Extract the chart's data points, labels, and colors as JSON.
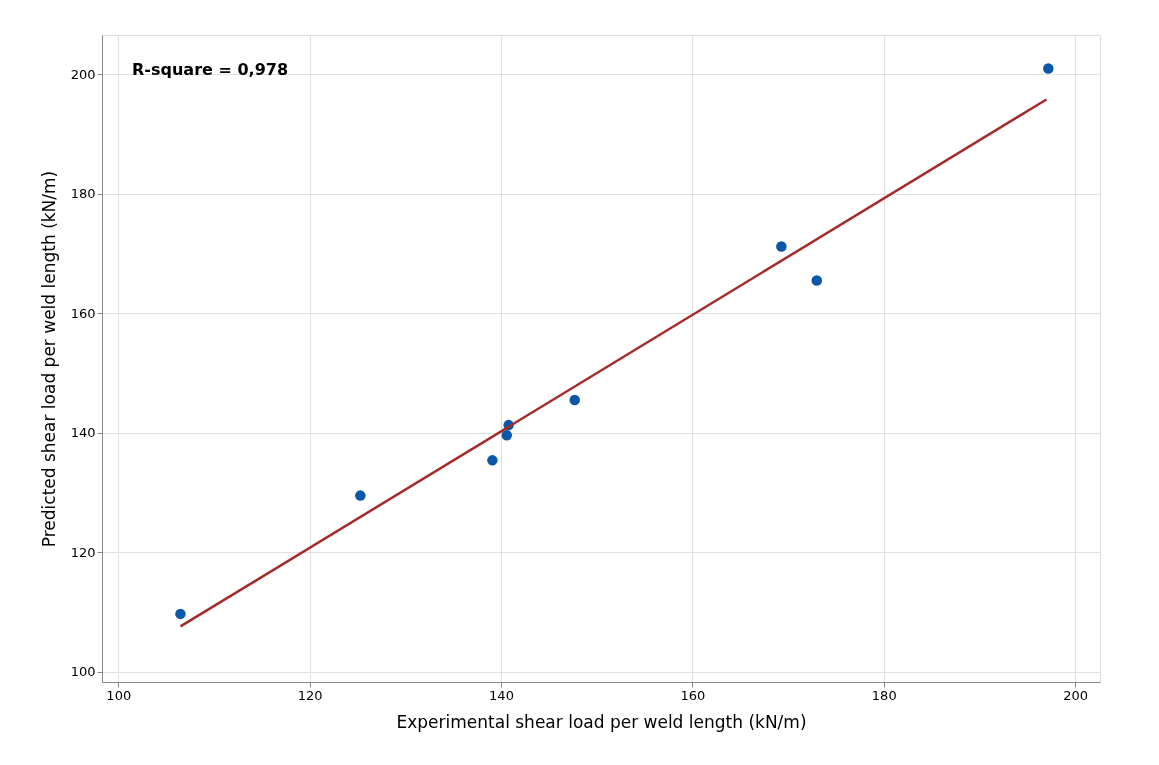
{
  "chart_data": {
    "type": "scatter",
    "xlabel": "Experimental shear load per weld length (kN/m)",
    "ylabel": "Predicted shear load per weld length (kN/m)",
    "annotations": [
      "R-square = 0,978"
    ],
    "series": [
      {
        "color": "#0a56a8",
        "marker": "circle",
        "x": [
          106.5,
          125.3,
          139.1,
          140.6,
          140.8,
          147.7,
          169.3,
          173.0,
          197.2
        ],
        "values": [
          109.7,
          129.5,
          135.4,
          139.6,
          141.3,
          145.5,
          171.2,
          165.5,
          201.0
        ]
      },
      {
        "type": "line",
        "marker": "none",
        "color": "#a52a2a",
        "x": [
          106.5,
          197.0
        ],
        "values": [
          107.6,
          195.8
        ]
      }
    ],
    "xlim": [
      98.3,
      202.6
    ],
    "ylim": [
      98.3,
      206.6
    ],
    "xticks": [
      100,
      120,
      140,
      160,
      180,
      200
    ],
    "yticks": [
      100,
      120,
      140,
      160,
      180,
      200
    ],
    "grid": true
  }
}
